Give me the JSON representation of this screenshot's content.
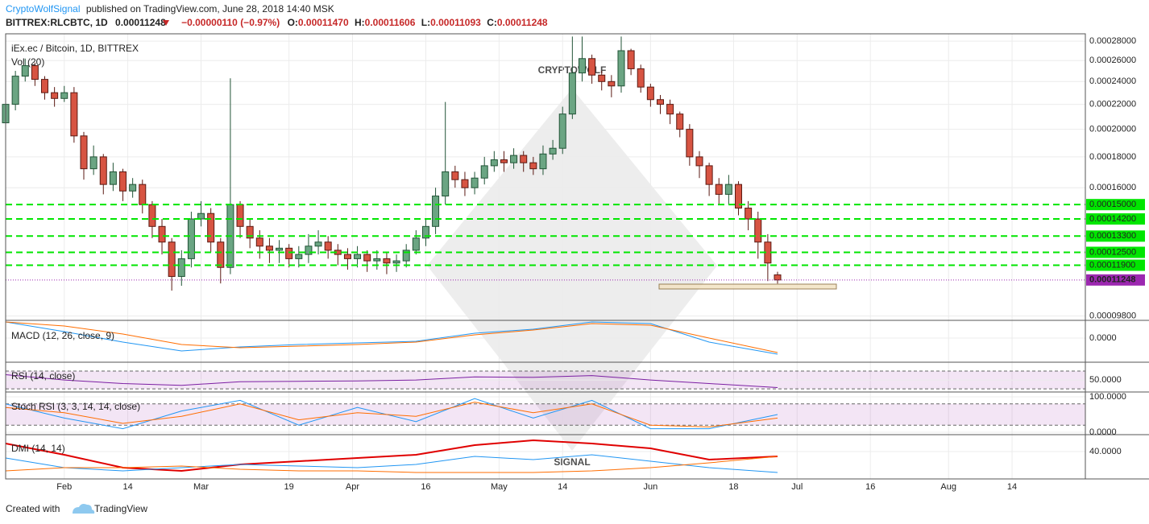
{
  "header": {
    "author": "CryptoWolfSignal",
    "published": "published on TradingView.com, June 28, 2018 14:40 MSK",
    "symbol": "BITTREX:RLCBTC, 1D",
    "price": "0.00011248",
    "change": "−0.00000110 (−0.97%)",
    "ohlc": [
      {
        "label": "O:",
        "value": "0.00011470"
      },
      {
        "label": "H:",
        "value": "0.00011606"
      },
      {
        "label": "L:",
        "value": "0.00011093"
      },
      {
        "label": "C:",
        "value": "0.00011248"
      }
    ]
  },
  "watermark": [
    "CRYPTOWOLF",
    "SIGNAL"
  ],
  "chart_data": [
    {
      "type": "candlestick",
      "title": "iEx.ec / Bitcoin, 1D, BITTREX",
      "subtitle": "Vol (20)",
      "log": true,
      "up_color": "#6ba583",
      "up_edge": "#225437",
      "down_color": "#d75442",
      "down_edge": "#5b1a13",
      "level_color": "#00e600",
      "last_color": "#9c27b0",
      "x": [
        "2018-01-20",
        "2018-01-22",
        "2018-01-24",
        "2018-01-26",
        "2018-01-28",
        "2018-01-30",
        "2018-02-01",
        "2018-02-03",
        "2018-02-05",
        "2018-02-07",
        "2018-02-09",
        "2018-02-11",
        "2018-02-13",
        "2018-02-15",
        "2018-02-17",
        "2018-02-19",
        "2018-02-21",
        "2018-02-23",
        "2018-02-25",
        "2018-02-27",
        "2018-03-01",
        "2018-03-03",
        "2018-03-05",
        "2018-03-07",
        "2018-03-09",
        "2018-03-11",
        "2018-03-13",
        "2018-03-15",
        "2018-03-17",
        "2018-03-19",
        "2018-03-21",
        "2018-03-23",
        "2018-03-25",
        "2018-03-27",
        "2018-03-29",
        "2018-03-31",
        "2018-04-02",
        "2018-04-04",
        "2018-04-06",
        "2018-04-08",
        "2018-04-10",
        "2018-04-12",
        "2018-04-14",
        "2018-04-16",
        "2018-04-18",
        "2018-04-20",
        "2018-04-22",
        "2018-04-24",
        "2018-04-26",
        "2018-04-28",
        "2018-04-30",
        "2018-05-02",
        "2018-05-04",
        "2018-05-06",
        "2018-05-08",
        "2018-05-10",
        "2018-05-12",
        "2018-05-14",
        "2018-05-16",
        "2018-05-18",
        "2018-05-20",
        "2018-05-22",
        "2018-05-24",
        "2018-05-26",
        "2018-05-28",
        "2018-05-30",
        "2018-06-01",
        "2018-06-03",
        "2018-06-05",
        "2018-06-07",
        "2018-06-09",
        "2018-06-11",
        "2018-06-13",
        "2018-06-15",
        "2018-06-17",
        "2018-06-19",
        "2018-06-21",
        "2018-06-23",
        "2018-06-25",
        "2018-06-27"
      ],
      "open": [
        0.000205,
        0.00022,
        0.000245,
        0.000255,
        0.000242,
        0.00023,
        0.000225,
        0.00023,
        0.000195,
        0.000172,
        0.00018,
        0.000162,
        0.00017,
        0.000158,
        0.000162,
        0.00015,
        0.000138,
        0.00013,
        0.000114,
        0.000122,
        0.000142,
        0.000145,
        0.00013,
        0.000118,
        0.00015,
        0.000138,
        0.000132,
        0.000128,
        0.000126,
        0.000127,
        0.000122,
        0.000124,
        0.000128,
        0.00013,
        0.000126,
        0.000124,
        0.000122,
        0.000124,
        0.000121,
        0.000122,
        0.00012,
        0.000121,
        0.000126,
        0.000132,
        0.000138,
        0.000155,
        0.00017,
        0.000165,
        0.00016,
        0.000166,
        0.000174,
        0.000178,
        0.000176,
        0.000181,
        0.000176,
        0.000172,
        0.000182,
        0.000186,
        0.000212,
        0.000248,
        0.000262,
        0.000246,
        0.00024,
        0.000236,
        0.00027,
        0.000252,
        0.000235,
        0.000224,
        0.00022,
        0.000212,
        0.0002,
        0.00018,
        0.000174,
        0.000162,
        0.000156,
        0.000162,
        0.000148,
        0.000142,
        0.00013,
        0.0001147
      ],
      "high": [
        0.000225,
        0.00025,
        0.000262,
        0.000258,
        0.000245,
        0.000235,
        0.000236,
        0.000235,
        0.000198,
        0.000188,
        0.000182,
        0.000176,
        0.000172,
        0.000166,
        0.000165,
        0.000152,
        0.000142,
        0.000132,
        0.000126,
        0.000146,
        0.000152,
        0.000148,
        0.000132,
        0.000243,
        0.000152,
        0.000142,
        0.000136,
        0.000132,
        0.000131,
        0.000129,
        0.000128,
        0.000134,
        0.000136,
        0.000133,
        0.000129,
        0.000127,
        0.000128,
        0.000126,
        0.000126,
        0.000125,
        0.000124,
        0.000129,
        0.000136,
        0.000142,
        0.00016,
        0.000222,
        0.000174,
        0.00017,
        0.00017,
        0.00018,
        0.000184,
        0.000184,
        0.000186,
        0.000184,
        0.00018,
        0.000188,
        0.000192,
        0.000218,
        0.000285,
        0.000285,
        0.000266,
        0.00025,
        0.000246,
        0.000285,
        0.000272,
        0.000256,
        0.000238,
        0.000228,
        0.000224,
        0.000214,
        0.000204,
        0.000184,
        0.000176,
        0.000166,
        0.000168,
        0.000164,
        0.000152,
        0.000146,
        0.000134,
        0.00011606
      ],
      "low": [
        0.000198,
        0.000215,
        0.00024,
        0.000236,
        0.000224,
        0.000218,
        0.000222,
        0.00019,
        0.000165,
        0.000168,
        0.000156,
        0.000158,
        0.000152,
        0.000154,
        0.000145,
        0.000132,
        0.000124,
        0.000108,
        0.00011,
        0.000118,
        0.000138,
        0.000125,
        0.000111,
        0.000115,
        0.000132,
        0.000127,
        0.000122,
        0.00012,
        0.00012,
        0.000118,
        0.000118,
        0.00012,
        0.000124,
        0.000122,
        0.000119,
        0.000117,
        0.000118,
        0.000116,
        0.000117,
        0.000115,
        0.000116,
        0.000118,
        0.000124,
        0.000128,
        0.000134,
        0.00015,
        0.00016,
        0.000155,
        0.000156,
        0.000162,
        0.00017,
        0.00017,
        0.000172,
        0.00017,
        0.000168,
        0.000168,
        0.000178,
        0.000182,
        0.000208,
        0.00024,
        0.000238,
        0.000232,
        0.000226,
        0.00023,
        0.000246,
        0.00023,
        0.000218,
        0.000212,
        0.000204,
        0.000194,
        0.000174,
        0.000166,
        0.000155,
        0.00015,
        0.00015,
        0.000144,
        0.000136,
        0.000122,
        0.000112,
        0.00011093
      ],
      "close": [
        0.00022,
        0.000245,
        0.000255,
        0.000242,
        0.00023,
        0.000225,
        0.00023,
        0.000195,
        0.000172,
        0.00018,
        0.000162,
        0.00017,
        0.000158,
        0.000162,
        0.00015,
        0.000138,
        0.00013,
        0.000114,
        0.000122,
        0.000142,
        0.000145,
        0.00013,
        0.000118,
        0.00015,
        0.000138,
        0.000132,
        0.000128,
        0.000126,
        0.000127,
        0.000122,
        0.000124,
        0.000128,
        0.00013,
        0.000126,
        0.000124,
        0.000122,
        0.000124,
        0.000121,
        0.000122,
        0.00012,
        0.000121,
        0.000126,
        0.000132,
        0.000138,
        0.000155,
        0.00017,
        0.000165,
        0.00016,
        0.000166,
        0.000174,
        0.000178,
        0.000176,
        0.000181,
        0.000176,
        0.000172,
        0.000182,
        0.000186,
        0.000212,
        0.000248,
        0.000262,
        0.000246,
        0.00024,
        0.000236,
        0.00027,
        0.000252,
        0.000235,
        0.000224,
        0.00022,
        0.000212,
        0.0002,
        0.00018,
        0.000174,
        0.000162,
        0.000156,
        0.000162,
        0.000148,
        0.000142,
        0.00013,
        0.00012,
        0.00011248
      ],
      "xlim": [
        "2018-01-20",
        "2018-08-29"
      ],
      "xticks": [
        {
          "value": "2018-02-01",
          "label": "Feb"
        },
        {
          "value": "2018-02-14",
          "label": "14"
        },
        {
          "value": "2018-03-01",
          "label": "Mar"
        },
        {
          "value": "2018-03-19",
          "label": "19"
        },
        {
          "value": "2018-04-01",
          "label": "Apr"
        },
        {
          "value": "2018-04-16",
          "label": "16"
        },
        {
          "value": "2018-05-01",
          "label": "May"
        },
        {
          "value": "2018-05-14",
          "label": "14"
        },
        {
          "value": "2018-06-01",
          "label": "Jun"
        },
        {
          "value": "2018-06-18",
          "label": "18"
        },
        {
          "value": "2018-07-01",
          "label": "Jul"
        },
        {
          "value": "2018-07-16",
          "label": "16"
        },
        {
          "value": "2018-08-01",
          "label": "Aug"
        },
        {
          "value": "2018-08-14",
          "label": "14"
        }
      ],
      "ylim": [
        9.64e-05,
        0.000288
      ],
      "yticks": [
        {
          "value": 0.00028,
          "label": "0.00028000"
        },
        {
          "value": 0.00026,
          "label": "0.00026000"
        },
        {
          "value": 0.00024,
          "label": "0.00024000"
        },
        {
          "value": 0.00022,
          "label": "0.00022000"
        },
        {
          "value": 0.0002,
          "label": "0.00020000"
        },
        {
          "value": 0.00018,
          "label": "0.00018000"
        },
        {
          "value": 0.00016,
          "label": "0.00016000"
        },
        {
          "value": 9.8e-05,
          "label": "0.00009800"
        }
      ],
      "levels": [
        {
          "value": 0.00015,
          "label": "0.00015000"
        },
        {
          "value": 0.000142,
          "label": "0.00014200"
        },
        {
          "value": 0.000133,
          "label": "0.00013300"
        },
        {
          "value": 0.000125,
          "label": "0.00012500"
        },
        {
          "value": 0.000119,
          "label": "0.00011900"
        }
      ]
    },
    {
      "type": "line",
      "title": "MACD (12, 26, close, 9)",
      "x": [
        "2018-01-20",
        "2018-02-01",
        "2018-02-13",
        "2018-02-25",
        "2018-03-09",
        "2018-03-21",
        "2018-04-02",
        "2018-04-14",
        "2018-04-26",
        "2018-05-08",
        "2018-05-20",
        "2018-06-01",
        "2018-06-13",
        "2018-06-27"
      ],
      "series": [
        {
          "color": "#2196f3",
          "values": [
            8e-06,
            3.2e-06,
            -2e-06,
            -6.4e-06,
            -4.4e-06,
            -3.2e-06,
            -2.4e-06,
            -1.6e-06,
            2.4e-06,
            4.4e-06,
            8e-06,
            7.2e-06,
            -2e-06,
            -8e-06
          ]
        },
        {
          "color": "#ff6d00",
          "values": [
            8e-06,
            6e-06,
            2e-06,
            -3.2e-06,
            -4.8e-06,
            -4e-06,
            -3.2e-06,
            -2e-06,
            1.6e-06,
            4e-06,
            7.2e-06,
            6.4e-06,
            0,
            -7.2e-06
          ]
        }
      ],
      "ylim": [
        -1.2e-05,
        8.8e-06
      ],
      "yticks": [
        {
          "value": 0,
          "label": "0.0000"
        }
      ]
    },
    {
      "type": "line",
      "title": "RSI (14, close)",
      "band": [
        30,
        70
      ],
      "band_color": "#9c27b0",
      "x": [
        "2018-01-20",
        "2018-02-01",
        "2018-02-13",
        "2018-02-25",
        "2018-03-09",
        "2018-03-21",
        "2018-04-02",
        "2018-04-14",
        "2018-04-26",
        "2018-05-08",
        "2018-05-20",
        "2018-06-01",
        "2018-06-13",
        "2018-06-27"
      ],
      "series": [
        {
          "color": "#7b1fa2",
          "values": [
            62,
            50,
            42,
            38,
            46,
            47,
            48,
            50,
            57,
            56,
            60,
            50,
            42,
            33
          ]
        }
      ],
      "ylim": [
        23,
        90
      ],
      "yticks": [
        {
          "value": 50,
          "label": "50.0000"
        }
      ]
    },
    {
      "type": "line",
      "title": "Stoch RSI (3, 3, 14, 14, close)",
      "band": [
        20,
        80
      ],
      "band_color": "#9c27b0",
      "x": [
        "2018-01-20",
        "2018-02-01",
        "2018-02-13",
        "2018-02-25",
        "2018-03-09",
        "2018-03-21",
        "2018-04-02",
        "2018-04-14",
        "2018-04-26",
        "2018-05-08",
        "2018-05-20",
        "2018-06-01",
        "2018-06-13",
        "2018-06-27"
      ],
      "series": [
        {
          "color": "#2196f3",
          "values": [
            80,
            40,
            10,
            60,
            90,
            20,
            70,
            30,
            95,
            40,
            90,
            10,
            10,
            50
          ]
        },
        {
          "color": "#ff6d00",
          "values": [
            70,
            55,
            25,
            45,
            80,
            35,
            55,
            45,
            85,
            55,
            80,
            20,
            15,
            40
          ]
        }
      ],
      "ylim": [
        -6.8,
        113.6
      ],
      "yticks": [
        {
          "value": 100,
          "label": "100.0000"
        },
        {
          "value": 0,
          "label": "0.0000"
        }
      ]
    },
    {
      "type": "line",
      "title": "DMI (14, 14)",
      "x": [
        "2018-01-20",
        "2018-02-01",
        "2018-02-13",
        "2018-02-25",
        "2018-03-09",
        "2018-03-21",
        "2018-04-02",
        "2018-04-14",
        "2018-04-26",
        "2018-05-08",
        "2018-05-20",
        "2018-06-01",
        "2018-06-13",
        "2018-06-27"
      ],
      "series": [
        {
          "color": "#e00000",
          "values": [
            45,
            38,
            30,
            28,
            32,
            34,
            36,
            38,
            44,
            47,
            45,
            42,
            35,
            37
          ]
        },
        {
          "color": "#2196f3",
          "values": [
            36,
            30,
            28,
            30,
            32,
            31,
            30,
            32,
            37,
            35,
            38,
            34,
            30,
            27
          ]
        },
        {
          "color": "#ff6d00",
          "values": [
            28,
            30,
            30,
            31,
            29,
            28,
            28,
            27,
            27,
            27,
            28,
            30,
            33,
            37
          ]
        }
      ],
      "ylim": [
        23,
        50.5
      ],
      "yticks": [
        {
          "value": 40,
          "label": "40.0000"
        }
      ]
    }
  ],
  "footer": {
    "text": "Created with",
    "brand": "TradingView"
  }
}
